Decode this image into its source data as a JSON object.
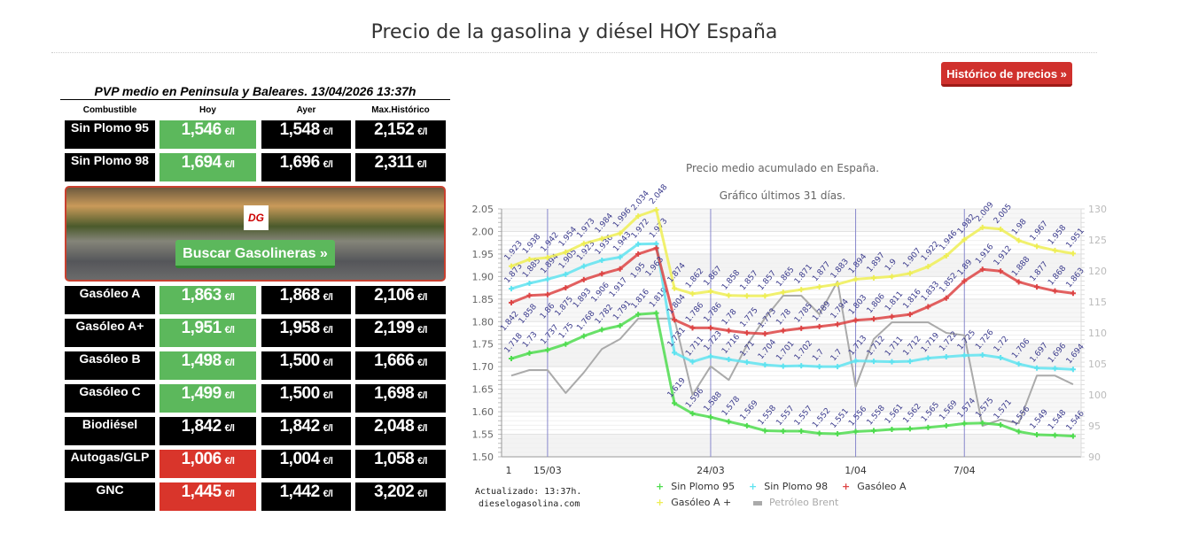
{
  "page": {
    "title": "Precio de la gasolina y diésel HOY España",
    "historico_button": "Histórico de precios »"
  },
  "table": {
    "caption": "PVP medio en Peninsula y Baleares. 13/04/2026 13:37h",
    "headers": [
      "Combustible",
      "Hoy",
      "Ayer",
      "Max.Histórico"
    ],
    "unit": "€/l",
    "rows": [
      {
        "name": "Sin Plomo 95",
        "hoy": "1,546",
        "ayer": "1,548",
        "max": "2,152",
        "hoy_status": "green"
      },
      {
        "name": "Sin Plomo 98",
        "hoy": "1,694",
        "ayer": "1,696",
        "max": "2,311",
        "hoy_status": "green"
      },
      {
        "name": "Gasóleo A",
        "hoy": "1,863",
        "ayer": "1,868",
        "max": "2,106",
        "hoy_status": "green"
      },
      {
        "name": "Gasóleo A+",
        "hoy": "1,951",
        "ayer": "1,958",
        "max": "2,199",
        "hoy_status": "green"
      },
      {
        "name": "Gasóleo B",
        "hoy": "1,498",
        "ayer": "1,500",
        "max": "1,666",
        "hoy_status": "green"
      },
      {
        "name": "Gasóleo C",
        "hoy": "1,499",
        "ayer": "1,500",
        "max": "1,698",
        "hoy_status": "green"
      },
      {
        "name": "Biodiésel",
        "hoy": "1,842",
        "ayer": "1,842",
        "max": "2,048",
        "hoy_status": "black"
      },
      {
        "name": "Autogas/GLP",
        "hoy": "1,006",
        "ayer": "1,004",
        "max": "1,058",
        "hoy_status": "red"
      },
      {
        "name": "GNC",
        "hoy": "1,445",
        "ayer": "1,442",
        "max": "3,202",
        "hoy_status": "red"
      }
    ]
  },
  "banner": {
    "button": "Buscar Gasolineras »",
    "logo": "DG"
  },
  "colors": {
    "green": "#5cb85c",
    "red": "#d9352b",
    "black": "#000000"
  },
  "footer": {
    "updated": "Actualizado: 13:37h.",
    "site": "dieselogasolina.com"
  },
  "chart_data": {
    "type": "line",
    "title": "Precio medio acumulado en España.",
    "subtitle": "Gráfico últimos 31 días.",
    "x_tick_labels": [
      {
        "index": 0,
        "label": "1"
      },
      {
        "index": 2,
        "label": "15/03"
      },
      {
        "index": 11,
        "label": "24/03"
      },
      {
        "index": 19,
        "label": "1/04"
      },
      {
        "index": 25,
        "label": "7/04"
      }
    ],
    "ylim": [
      1.5,
      2.05
    ],
    "yticks": [
      "1.50",
      "1.55",
      "1.60",
      "1.65",
      "1.70",
      "1.75",
      "1.80",
      "1.85",
      "1.90",
      "1.95",
      "2.00",
      "2.05"
    ],
    "y2lim": [
      90,
      130
    ],
    "y2ticks": [
      "90",
      "95",
      "100",
      "105",
      "110",
      "115",
      "120",
      "125",
      "130"
    ],
    "grid": true,
    "legend": "bottom",
    "series": [
      {
        "name": "Sin Plomo 95",
        "color": "#4fdc4f",
        "axis": "left",
        "labels": true,
        "values": [
          1.718,
          1.73,
          1.737,
          1.75,
          1.768,
          1.782,
          1.791,
          1.816,
          1.819,
          1.619,
          1.596,
          1.588,
          1.578,
          1.569,
          1.558,
          1.557,
          1.557,
          1.552,
          1.551,
          1.556,
          1.558,
          1.561,
          1.562,
          1.565,
          1.569,
          1.574,
          1.575,
          1.571,
          1.556,
          1.549,
          1.548,
          1.546
        ]
      },
      {
        "name": "Sin Plomo 98",
        "color": "#5fe3f0",
        "axis": "left",
        "labels": true,
        "values": [
          1.873,
          1.885,
          1.894,
          1.905,
          1.923,
          1.936,
          1.943,
          1.972,
          1.973,
          1.731,
          1.711,
          1.723,
          1.716,
          1.71,
          1.704,
          1.701,
          1.702,
          1.7,
          1.7,
          1.713,
          1.712,
          1.711,
          1.712,
          1.719,
          1.722,
          1.725,
          1.726,
          1.72,
          1.706,
          1.697,
          1.696,
          1.694
        ]
      },
      {
        "name": "Gasóleo A",
        "color": "#dd4444",
        "axis": "left",
        "labels": true,
        "values": [
          1.842,
          1.858,
          1.86,
          1.875,
          1.893,
          1.906,
          1.917,
          1.95,
          1.963,
          1.804,
          1.786,
          1.786,
          1.78,
          1.775,
          1.773,
          1.78,
          1.785,
          1.789,
          1.794,
          1.803,
          1.806,
          1.811,
          1.816,
          1.833,
          1.852,
          1.89,
          1.916,
          1.912,
          1.888,
          1.877,
          1.868,
          1.863
        ]
      },
      {
        "name": "Gasóleo A +",
        "color": "#eeee55",
        "axis": "left",
        "labels": true,
        "values": [
          1.923,
          1.938,
          1.942,
          1.954,
          1.973,
          1.984,
          1.996,
          2.034,
          2.048,
          1.874,
          1.862,
          1.867,
          1.858,
          1.857,
          1.857,
          1.865,
          1.871,
          1.877,
          1.883,
          1.894,
          1.897,
          1.9,
          1.907,
          1.922,
          1.946,
          1.982,
          2.009,
          2.005,
          1.98,
          1.967,
          1.958,
          1.951
        ]
      },
      {
        "name": "Petróleo Brent",
        "color": "#aaaaaa",
        "axis": "right",
        "labels": false,
        "values": [
          103.1,
          104,
          104,
          100.3,
          103.6,
          107.4,
          109,
          112.3,
          112.3,
          112.3,
          100,
          104.6,
          102.4,
          108,
          112.4,
          116,
          116,
          113,
          118.3,
          101.3,
          109,
          111.7,
          111.7,
          111.7,
          110,
          109.6,
          95,
          96,
          95.4,
          103.1,
          103.1,
          101.7
        ]
      }
    ]
  }
}
